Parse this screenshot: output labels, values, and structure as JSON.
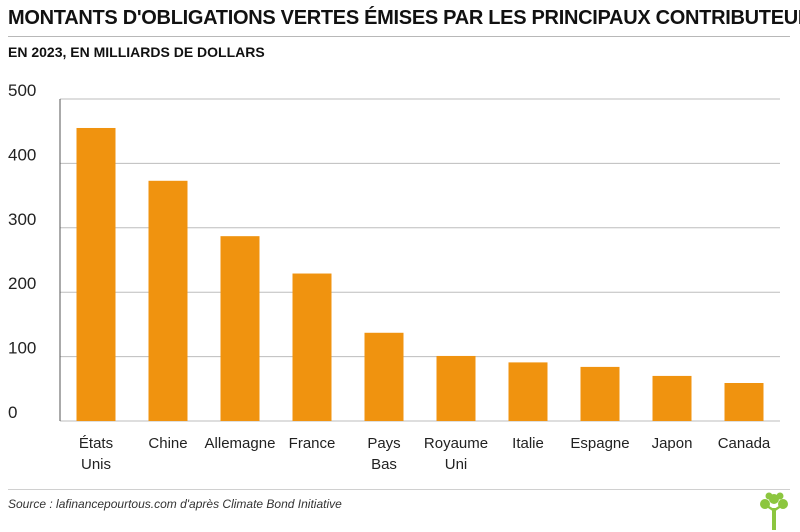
{
  "header": {
    "title": "MONTANTS D'OBLIGATIONS VERTES ÉMISES PAR LES PRINCIPAUX CONTRIBUTEURS",
    "subtitle": "EN 2023, EN MILLIARDS DE DOLLARS"
  },
  "footer": {
    "source": "Source : lafinancepourtous.com d'après Climate Bond Initiative",
    "logo_icon": "tree-icon"
  },
  "colors": {
    "bar": "#f0930f",
    "gridline": "#bdbdbd",
    "logo": "#8cc63f"
  },
  "chart_data": {
    "type": "bar",
    "title": "MONTANTS D'OBLIGATIONS VERTES ÉMISES PAR LES PRINCIPAUX CONTRIBUTEURS",
    "subtitle": "EN 2023, EN MILLIARDS DE DOLLARS",
    "categories": [
      "États Unis",
      "Chine",
      "Allemagne",
      "France",
      "Pays Bas",
      "Royaume Uni",
      "Italie",
      "Espagne",
      "Japon",
      "Canada"
    ],
    "category_lines": [
      [
        "États",
        "Unis"
      ],
      [
        "Chine"
      ],
      [
        "Allemagne"
      ],
      [
        "France"
      ],
      [
        "Pays",
        "Bas"
      ],
      [
        "Royaume",
        "Uni"
      ],
      [
        "Italie"
      ],
      [
        "Espagne"
      ],
      [
        "Japon"
      ],
      [
        "Canada"
      ]
    ],
    "values": [
      455,
      373,
      287,
      229,
      137,
      101,
      91,
      84,
      70,
      59
    ],
    "yticks": [
      0,
      100,
      200,
      300,
      400,
      500
    ],
    "ylim": [
      0,
      500
    ],
    "xlabel": "",
    "ylabel": "",
    "grid": true,
    "legend": "none"
  }
}
